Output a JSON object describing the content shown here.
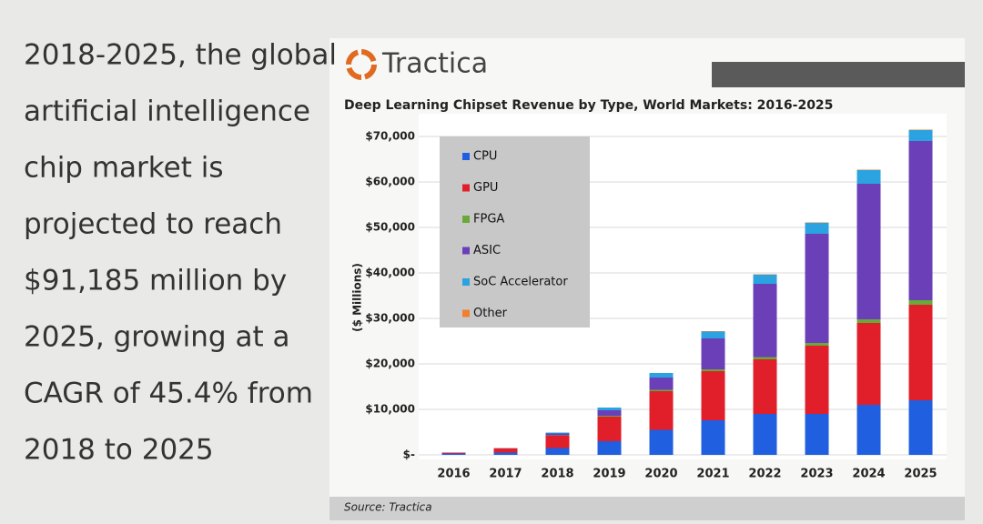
{
  "slide": {
    "lines": [
      "2018-2025, the global",
      "artificial intelligence",
      "chip market is",
      "projected to reach",
      "$91,185 million by",
      "2025, growing at a",
      "CAGR of 45.4% from",
      "2018 to 2025"
    ],
    "logo": "Tractica",
    "source": "Source: Tractica"
  },
  "chart_data": {
    "type": "stacked-bar",
    "title": "Deep Learning Chipset Revenue by Type, World Markets: 2016-2025",
    "y_label": "($ Millions)",
    "categories": [
      "2016",
      "2017",
      "2018",
      "2019",
      "2020",
      "2021",
      "2022",
      "2023",
      "2024",
      "2025"
    ],
    "series": [
      {
        "name": "CPU",
        "color": "#1f5fe0",
        "values": [
          300,
          500,
          1500,
          3000,
          5500,
          7600,
          9000,
          9000,
          11000,
          12000
        ]
      },
      {
        "name": "GPU",
        "color": "#e01f2a",
        "values": [
          200,
          900,
          2700,
          5400,
          8500,
          10800,
          12000,
          15000,
          18000,
          21000
        ]
      },
      {
        "name": "FPGA",
        "color": "#6aa83a",
        "values": [
          0,
          50,
          100,
          200,
          300,
          400,
          500,
          600,
          800,
          1000
        ]
      },
      {
        "name": "ASIC",
        "color": "#6a3fb8",
        "values": [
          0,
          50,
          400,
          1200,
          2700,
          6800,
          16100,
          24000,
          29800,
          35000
        ]
      },
      {
        "name": "SoC Accelerator",
        "color": "#2aa3e0",
        "values": [
          0,
          0,
          200,
          600,
          1000,
          1500,
          2000,
          2400,
          3000,
          2400
        ]
      },
      {
        "name": "Other",
        "color": "#f08030",
        "values": [
          0,
          0,
          0,
          0,
          0,
          100,
          100,
          100,
          100,
          100
        ]
      }
    ],
    "ylim": [
      0,
      74000
    ],
    "yticks": [
      {
        "value": 0,
        "label": "$-"
      },
      {
        "value": 10000,
        "label": "$10,000"
      },
      {
        "value": 20000,
        "label": "$20,000"
      },
      {
        "value": 30000,
        "label": "$30,000"
      },
      {
        "value": 40000,
        "label": "$40,000"
      },
      {
        "value": 50000,
        "label": "$50,000"
      },
      {
        "value": 60000,
        "label": "$60,000"
      },
      {
        "value": 70000,
        "label": "$70,000"
      }
    ],
    "grid": true
  }
}
